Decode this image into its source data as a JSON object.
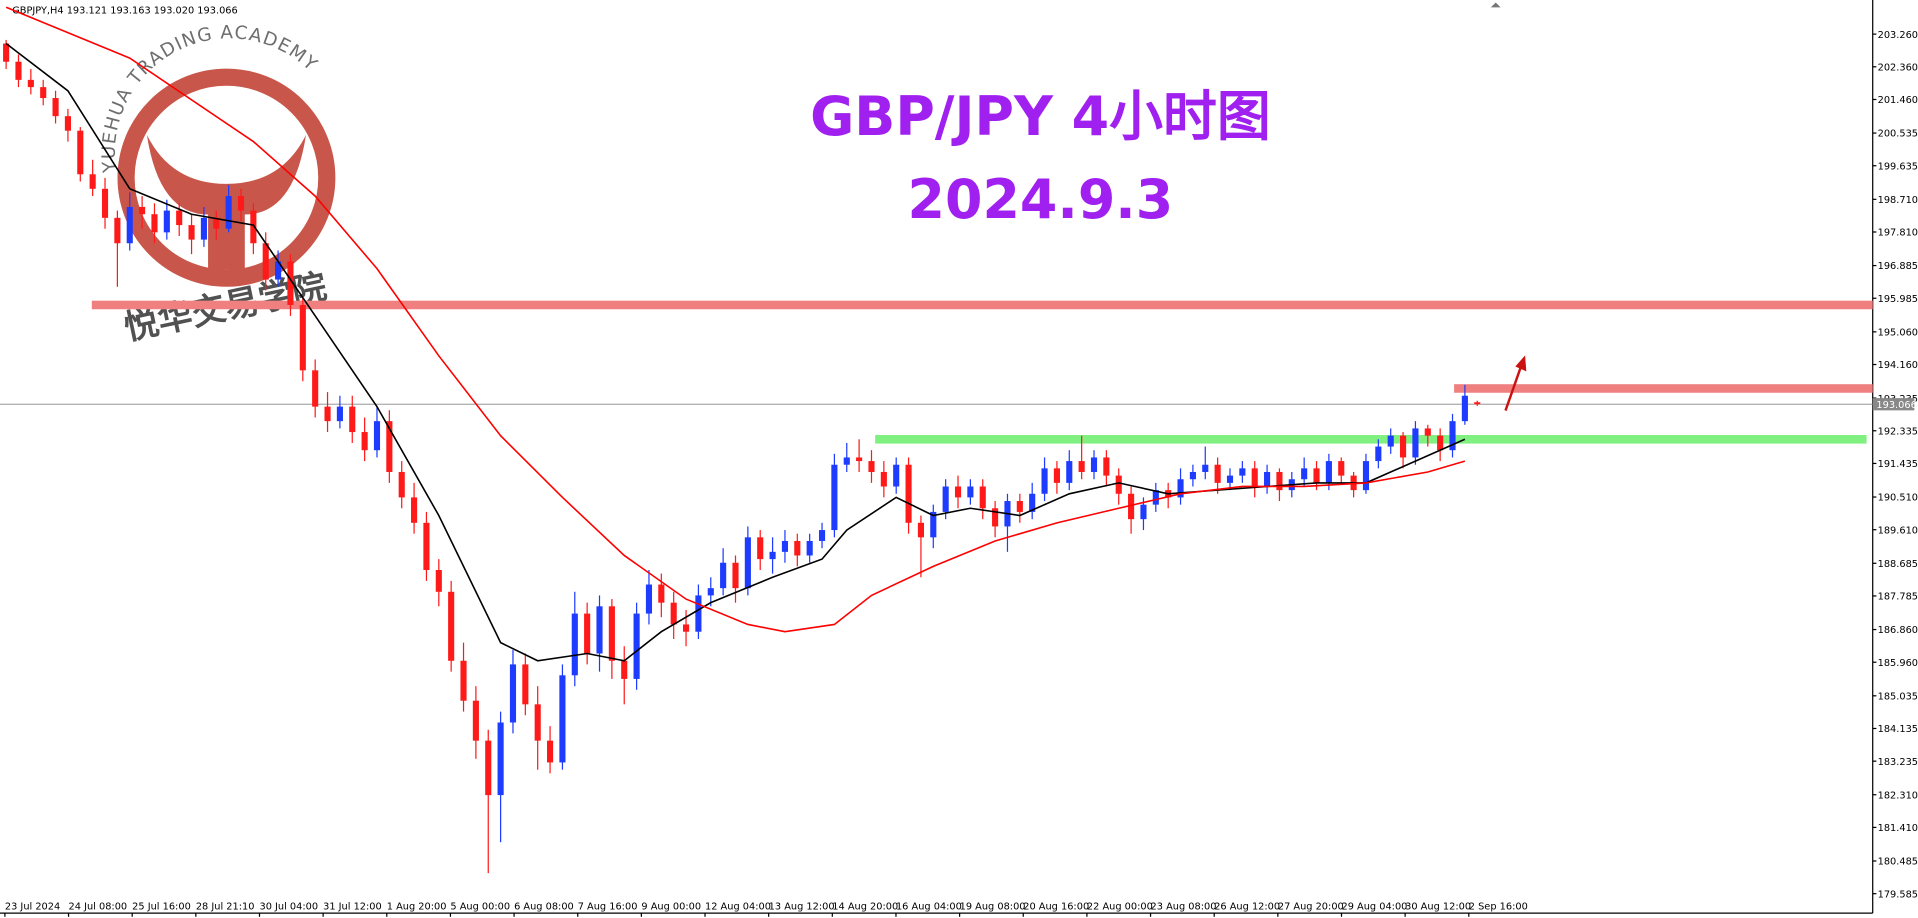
{
  "chart_data": {
    "type": "candlestick",
    "header": "GBPJPY,H4  193.121 193.163 193.020 193.066",
    "title": "GBP/JPY 4小时图",
    "subtitle": "2024.9.3",
    "watermark": {
      "ring_text": "YUEHUA TRADING ACADEMY",
      "cn_text": "悦华交易学院"
    },
    "up_color": "#1e3cff",
    "down_color": "#ff1a1a",
    "ylim": [
      179.05,
      204.2
    ],
    "yticks": [
      {
        "value": 203.26,
        "label": "203.260"
      },
      {
        "value": 202.36,
        "label": "202.360"
      },
      {
        "value": 201.46,
        "label": "201.460"
      },
      {
        "value": 200.535,
        "label": "200.535"
      },
      {
        "value": 199.635,
        "label": "199.635"
      },
      {
        "value": 198.71,
        "label": "198.710"
      },
      {
        "value": 197.81,
        "label": "197.810"
      },
      {
        "value": 196.885,
        "label": "196.885"
      },
      {
        "value": 195.985,
        "label": "195.985"
      },
      {
        "value": 195.06,
        "label": "195.060"
      },
      {
        "value": 194.16,
        "label": "194.160"
      },
      {
        "value": 193.235,
        "label": "193.235"
      },
      {
        "value": 192.335,
        "label": "192.335"
      },
      {
        "value": 191.435,
        "label": "191.435"
      },
      {
        "value": 190.51,
        "label": "190.510"
      },
      {
        "value": 189.61,
        "label": "189.610"
      },
      {
        "value": 188.685,
        "label": "188.685"
      },
      {
        "value": 187.785,
        "label": "187.785"
      },
      {
        "value": 186.86,
        "label": "186.860"
      },
      {
        "value": 185.96,
        "label": "185.960"
      },
      {
        "value": 185.035,
        "label": "185.035"
      },
      {
        "value": 184.135,
        "label": "184.135"
      },
      {
        "value": 183.235,
        "label": "183.235"
      },
      {
        "value": 182.31,
        "label": "182.310"
      },
      {
        "value": 181.41,
        "label": "181.410"
      },
      {
        "value": 180.485,
        "label": "180.485"
      },
      {
        "value": 179.585,
        "label": "179.585"
      }
    ],
    "categories": [
      "23 Jul 2024",
      "24 Jul 08:00",
      "25 Jul 16:00",
      "28 Jul 21:10",
      "30 Jul 04:00",
      "31 Jul 12:00",
      "1 Aug 20:00",
      "5 Aug 00:00",
      "6 Aug 08:00",
      "7 Aug 16:00",
      "9 Aug 00:00",
      "12 Aug 04:00",
      "13 Aug 12:00",
      "14 Aug 20:00",
      "16 Aug 04:00",
      "19 Aug 08:00",
      "20 Aug 16:00",
      "22 Aug 00:00",
      "23 Aug 08:00",
      "26 Aug 12:00",
      "27 Aug 20:00",
      "29 Aug 04:00",
      "30 Aug 12:00",
      "2 Sep 16:00"
    ],
    "current_price": 193.066,
    "levels": [
      {
        "value": 195.8,
        "color": "#f08080"
      },
      {
        "value": 193.5,
        "color": "#f08080"
      },
      {
        "value": 192.1,
        "color": "#80f080"
      }
    ],
    "ohlc": [
      [
        203.0,
        203.1,
        202.3,
        202.5
      ],
      [
        202.5,
        202.7,
        201.8,
        202.0
      ],
      [
        202.0,
        202.3,
        201.6,
        201.8
      ],
      [
        201.8,
        202.0,
        201.3,
        201.5
      ],
      [
        201.5,
        201.7,
        200.8,
        201.0
      ],
      [
        201.0,
        201.2,
        200.3,
        200.6
      ],
      [
        200.6,
        200.7,
        199.2,
        199.4
      ],
      [
        199.4,
        199.8,
        198.8,
        199.0
      ],
      [
        199.0,
        199.3,
        197.9,
        198.2
      ],
      [
        198.2,
        198.4,
        196.3,
        197.5
      ],
      [
        197.5,
        198.9,
        197.3,
        198.5
      ],
      [
        198.5,
        198.8,
        197.9,
        198.3
      ],
      [
        198.3,
        198.6,
        197.5,
        197.8
      ],
      [
        197.8,
        198.7,
        197.6,
        198.4
      ],
      [
        198.4,
        198.6,
        197.7,
        198.0
      ],
      [
        198.0,
        198.3,
        197.2,
        197.6
      ],
      [
        197.6,
        198.5,
        197.4,
        198.2
      ],
      [
        198.2,
        198.4,
        197.6,
        197.9
      ],
      [
        197.9,
        199.1,
        197.8,
        198.8
      ],
      [
        198.8,
        199.0,
        198.1,
        198.4
      ],
      [
        198.4,
        198.6,
        197.2,
        197.5
      ],
      [
        197.5,
        197.8,
        196.2,
        196.5
      ],
      [
        196.5,
        197.3,
        196.3,
        197.0
      ],
      [
        197.0,
        197.2,
        195.5,
        195.8
      ],
      [
        195.8,
        196.0,
        193.7,
        194.0
      ],
      [
        194.0,
        194.3,
        192.7,
        193.0
      ],
      [
        193.0,
        193.4,
        192.3,
        192.6
      ],
      [
        192.6,
        193.3,
        192.4,
        193.0
      ],
      [
        193.0,
        193.3,
        192.0,
        192.3
      ],
      [
        192.3,
        192.7,
        191.5,
        191.8
      ],
      [
        191.8,
        193.0,
        191.6,
        192.6
      ],
      [
        192.6,
        192.9,
        190.9,
        191.2
      ],
      [
        191.2,
        191.5,
        190.2,
        190.5
      ],
      [
        190.5,
        190.9,
        189.5,
        189.8
      ],
      [
        189.8,
        190.1,
        188.2,
        188.5
      ],
      [
        188.5,
        188.8,
        187.5,
        187.9
      ],
      [
        187.9,
        188.2,
        185.7,
        186.0
      ],
      [
        186.0,
        186.5,
        184.6,
        184.9
      ],
      [
        184.9,
        185.3,
        183.3,
        183.8
      ],
      [
        183.8,
        184.1,
        180.15,
        182.3
      ],
      [
        182.3,
        184.6,
        181.0,
        184.3
      ],
      [
        184.3,
        186.3,
        184.0,
        185.9
      ],
      [
        185.9,
        186.2,
        184.5,
        184.8
      ],
      [
        184.8,
        185.3,
        183.0,
        183.8
      ],
      [
        183.8,
        184.2,
        182.9,
        183.2
      ],
      [
        183.2,
        185.9,
        183.0,
        185.6
      ],
      [
        185.6,
        187.9,
        185.3,
        187.3
      ],
      [
        187.3,
        187.6,
        185.9,
        186.2
      ],
      [
        186.2,
        187.8,
        185.7,
        187.5
      ],
      [
        187.5,
        187.7,
        185.5,
        186.0
      ],
      [
        186.0,
        186.4,
        184.8,
        185.5
      ],
      [
        185.5,
        187.6,
        185.2,
        187.3
      ],
      [
        187.3,
        188.5,
        187.0,
        188.1
      ],
      [
        188.1,
        188.4,
        187.2,
        187.6
      ],
      [
        187.6,
        187.9,
        186.6,
        187.0
      ],
      [
        187.0,
        187.4,
        186.4,
        186.8
      ],
      [
        186.8,
        188.1,
        186.6,
        187.8
      ],
      [
        187.8,
        188.3,
        187.5,
        188.0
      ],
      [
        188.0,
        189.1,
        187.8,
        188.7
      ],
      [
        188.7,
        188.9,
        187.6,
        188.0
      ],
      [
        188.0,
        189.7,
        187.8,
        189.4
      ],
      [
        189.4,
        189.6,
        188.5,
        188.8
      ],
      [
        188.8,
        189.4,
        188.4,
        189.0
      ],
      [
        189.0,
        189.6,
        188.7,
        189.3
      ],
      [
        189.3,
        189.5,
        188.6,
        188.9
      ],
      [
        188.9,
        189.5,
        188.7,
        189.3
      ],
      [
        189.3,
        189.8,
        189.1,
        189.6
      ],
      [
        189.6,
        191.7,
        189.4,
        191.4
      ],
      [
        191.4,
        192.0,
        191.2,
        191.6
      ],
      [
        191.6,
        192.1,
        191.2,
        191.5
      ],
      [
        191.5,
        191.8,
        190.9,
        191.2
      ],
      [
        191.2,
        191.5,
        190.5,
        190.8
      ],
      [
        190.8,
        191.6,
        190.6,
        191.4
      ],
      [
        191.4,
        191.6,
        189.5,
        189.8
      ],
      [
        189.8,
        190.0,
        188.3,
        189.4
      ],
      [
        189.4,
        190.3,
        189.1,
        190.1
      ],
      [
        190.1,
        191.0,
        189.9,
        190.8
      ],
      [
        190.8,
        191.1,
        190.2,
        190.5
      ],
      [
        190.5,
        191.0,
        190.3,
        190.8
      ],
      [
        190.8,
        191.0,
        189.9,
        190.2
      ],
      [
        190.2,
        190.4,
        189.4,
        189.7
      ],
      [
        189.7,
        190.6,
        189.0,
        190.4
      ],
      [
        190.4,
        190.6,
        189.8,
        190.1
      ],
      [
        190.1,
        190.9,
        189.9,
        190.6
      ],
      [
        190.6,
        191.6,
        190.4,
        191.3
      ],
      [
        191.3,
        191.5,
        190.6,
        190.9
      ],
      [
        190.9,
        191.8,
        190.7,
        191.5
      ],
      [
        191.5,
        192.2,
        191.0,
        191.2
      ],
      [
        191.2,
        191.8,
        191.0,
        191.6
      ],
      [
        191.6,
        191.8,
        190.8,
        191.1
      ],
      [
        191.1,
        191.3,
        190.3,
        190.6
      ],
      [
        190.6,
        190.8,
        189.5,
        189.9
      ],
      [
        189.9,
        190.5,
        189.6,
        190.3
      ],
      [
        190.3,
        190.9,
        190.1,
        190.7
      ],
      [
        190.7,
        190.9,
        190.2,
        190.5
      ],
      [
        190.5,
        191.3,
        190.3,
        191.0
      ],
      [
        191.0,
        191.4,
        190.8,
        191.2
      ],
      [
        191.2,
        191.9,
        191.0,
        191.4
      ],
      [
        191.4,
        191.6,
        190.6,
        190.9
      ],
      [
        190.9,
        191.3,
        190.7,
        191.1
      ],
      [
        191.1,
        191.5,
        190.9,
        191.3
      ],
      [
        191.3,
        191.5,
        190.5,
        190.8
      ],
      [
        190.8,
        191.4,
        190.6,
        191.2
      ],
      [
        191.2,
        191.3,
        190.4,
        190.7
      ],
      [
        190.7,
        191.2,
        190.5,
        191.0
      ],
      [
        191.0,
        191.6,
        190.8,
        191.3
      ],
      [
        191.3,
        191.5,
        190.7,
        190.9
      ],
      [
        190.9,
        191.7,
        190.7,
        191.5
      ],
      [
        191.5,
        191.6,
        190.9,
        191.1
      ],
      [
        191.1,
        191.2,
        190.5,
        190.7
      ],
      [
        190.7,
        191.7,
        190.6,
        191.5
      ],
      [
        191.5,
        192.1,
        191.3,
        191.9
      ],
      [
        191.9,
        192.4,
        191.7,
        192.2
      ],
      [
        192.2,
        192.3,
        191.3,
        191.6
      ],
      [
        191.6,
        192.6,
        191.4,
        192.4
      ],
      [
        192.4,
        192.5,
        191.9,
        192.2
      ],
      [
        192.2,
        192.4,
        191.5,
        191.8
      ],
      [
        191.8,
        192.8,
        191.6,
        192.6
      ],
      [
        192.6,
        193.6,
        192.5,
        193.3
      ],
      [
        193.121,
        193.163,
        193.02,
        193.066
      ]
    ],
    "series": [
      {
        "color": "#000000",
        "x": [
          0,
          5,
          10,
          15,
          20,
          25,
          30,
          35,
          40,
          43,
          47,
          50,
          53,
          57,
          62,
          66,
          68,
          72,
          75,
          78,
          82,
          86,
          90,
          94,
          98,
          102,
          106,
          110,
          114,
          118
        ],
        "values": [
          203.0,
          201.7,
          199.0,
          198.3,
          198.0,
          195.5,
          193.0,
          190.0,
          186.5,
          186.0,
          186.2,
          186.0,
          186.8,
          187.6,
          188.3,
          188.8,
          189.6,
          190.5,
          190.0,
          190.2,
          190.0,
          190.6,
          190.9,
          190.6,
          190.7,
          190.8,
          190.9,
          190.9,
          191.5,
          192.1
        ]
      },
      {
        "color": "#ff0000",
        "x": [
          0,
          10,
          20,
          25,
          30,
          35,
          40,
          45,
          50,
          55,
          60,
          63,
          67,
          70,
          75,
          80,
          85,
          90,
          95,
          100,
          105,
          110,
          115,
          118
        ],
        "values": [
          204.0,
          202.6,
          200.3,
          198.8,
          196.8,
          194.4,
          192.2,
          190.5,
          188.9,
          187.7,
          187.0,
          186.8,
          187.0,
          187.8,
          188.6,
          189.3,
          189.8,
          190.2,
          190.6,
          190.8,
          190.8,
          190.9,
          191.2,
          191.5
        ]
      }
    ]
  }
}
